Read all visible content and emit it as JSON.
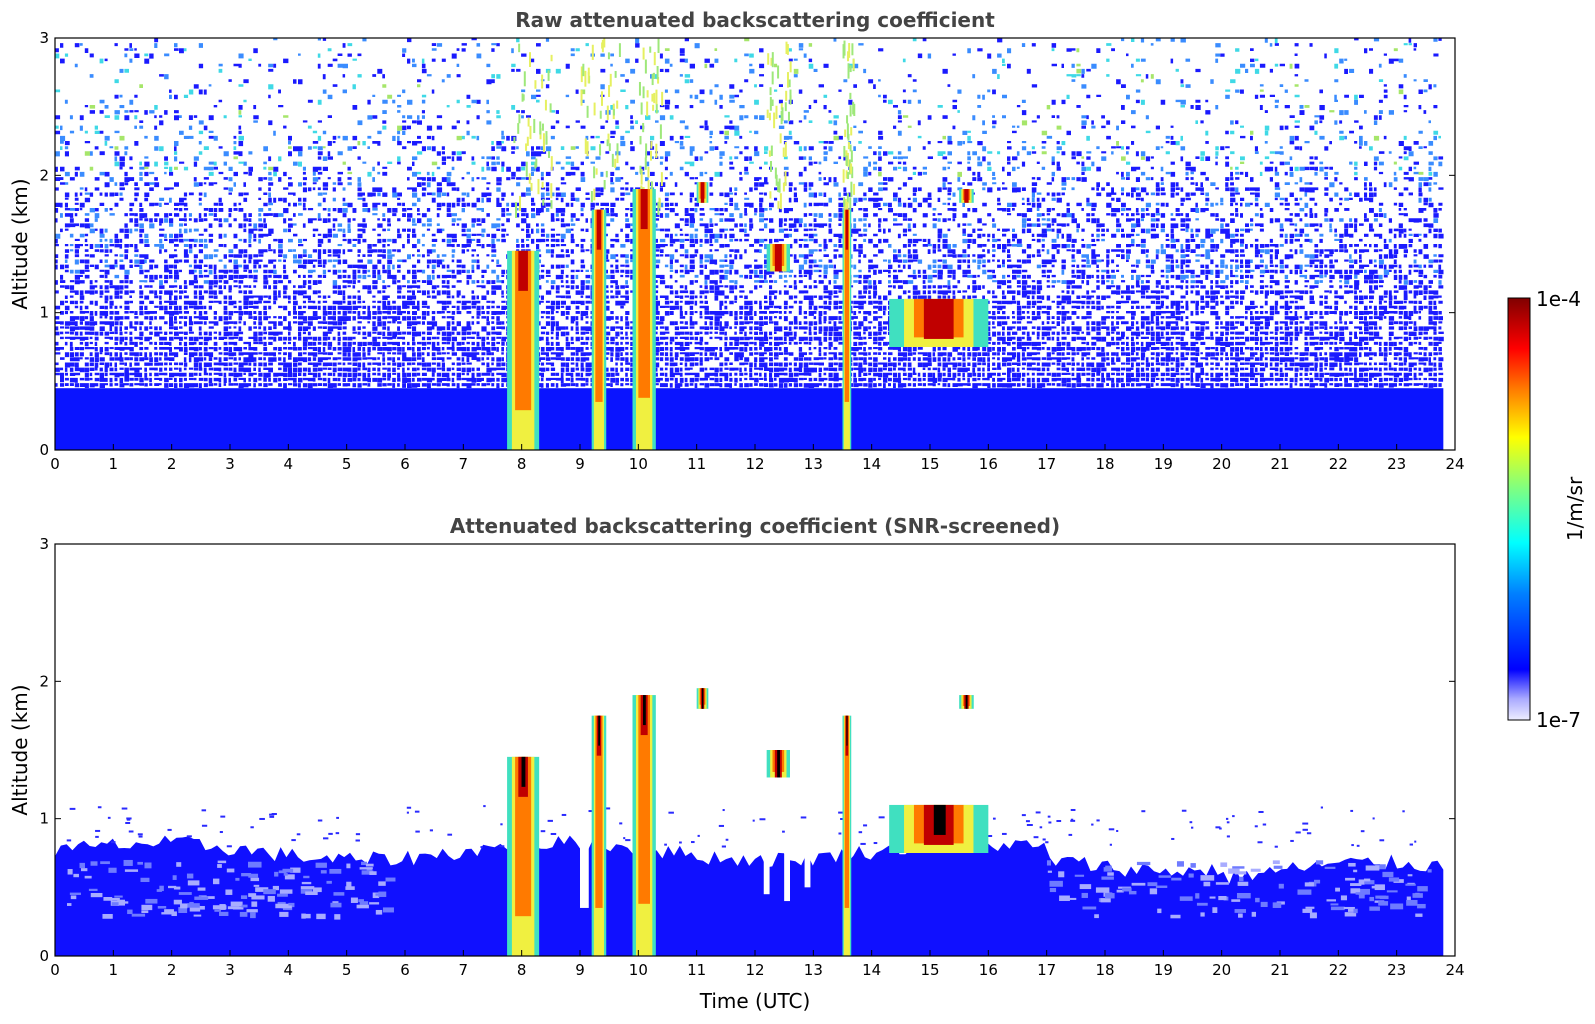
{
  "chart_data": [
    {
      "type": "heatmap",
      "title": "Raw attenuated backscattering coefficient",
      "ylabel": "Altitude (km)",
      "xlabel": "",
      "xlim": [
        0,
        24
      ],
      "ylim": [
        0,
        3
      ],
      "xticks": [
        "0",
        "1",
        "2",
        "3",
        "4",
        "5",
        "6",
        "7",
        "8",
        "9",
        "10",
        "11",
        "12",
        "13",
        "14",
        "15",
        "16",
        "17",
        "18",
        "19",
        "20",
        "21",
        "22",
        "23",
        "24"
      ],
      "yticks": [
        "0",
        "1",
        "2",
        "3"
      ],
      "data_extent_hours": [
        0,
        23.8
      ],
      "cloud_features": [
        {
          "t0": 7.75,
          "t1": 8.3,
          "base_km": 0.0,
          "top_km": 1.45
        },
        {
          "t0": 9.2,
          "t1": 9.45,
          "base_km": 0.0,
          "top_km": 1.75
        },
        {
          "t0": 9.9,
          "t1": 10.3,
          "base_km": 0.0,
          "top_km": 1.9
        },
        {
          "t0": 11.0,
          "t1": 11.2,
          "base_km": 1.8,
          "top_km": 1.95
        },
        {
          "t0": 12.2,
          "t1": 12.6,
          "base_km": 1.3,
          "top_km": 1.5
        },
        {
          "t0": 13.5,
          "t1": 13.65,
          "base_km": 0.0,
          "top_km": 1.75
        },
        {
          "t0": 14.3,
          "t1": 16.0,
          "base_km": 0.75,
          "top_km": 1.1
        },
        {
          "t0": 15.5,
          "t1": 15.75,
          "base_km": 1.8,
          "top_km": 1.9
        }
      ]
    },
    {
      "type": "heatmap",
      "title": "Attenuated backscattering coefficient (SNR-screened)",
      "ylabel": "Altitude (km)",
      "xlabel": "Time (UTC)",
      "xlim": [
        0,
        24
      ],
      "ylim": [
        0,
        3
      ],
      "xticks": [
        "0",
        "1",
        "2",
        "3",
        "4",
        "5",
        "6",
        "7",
        "8",
        "9",
        "10",
        "11",
        "12",
        "13",
        "14",
        "15",
        "16",
        "17",
        "18",
        "19",
        "20",
        "21",
        "22",
        "23",
        "24"
      ],
      "yticks": [
        "0",
        "1",
        "2",
        "3"
      ],
      "data_extent_hours": [
        0,
        23.8
      ],
      "boundary_layer_top_km": 0.8
    }
  ],
  "colorbar": {
    "label": "1/m/sr",
    "max_label": "1e-4",
    "min_label": "1e-7",
    "min": 1e-07,
    "max": 0.0001,
    "scale": "log",
    "colors": [
      "#eeeeff",
      "#aaaaff",
      "#0000ff",
      "#0080ff",
      "#00ffff",
      "#80ff80",
      "#ffff00",
      "#ff8000",
      "#ff0000",
      "#800000"
    ]
  }
}
